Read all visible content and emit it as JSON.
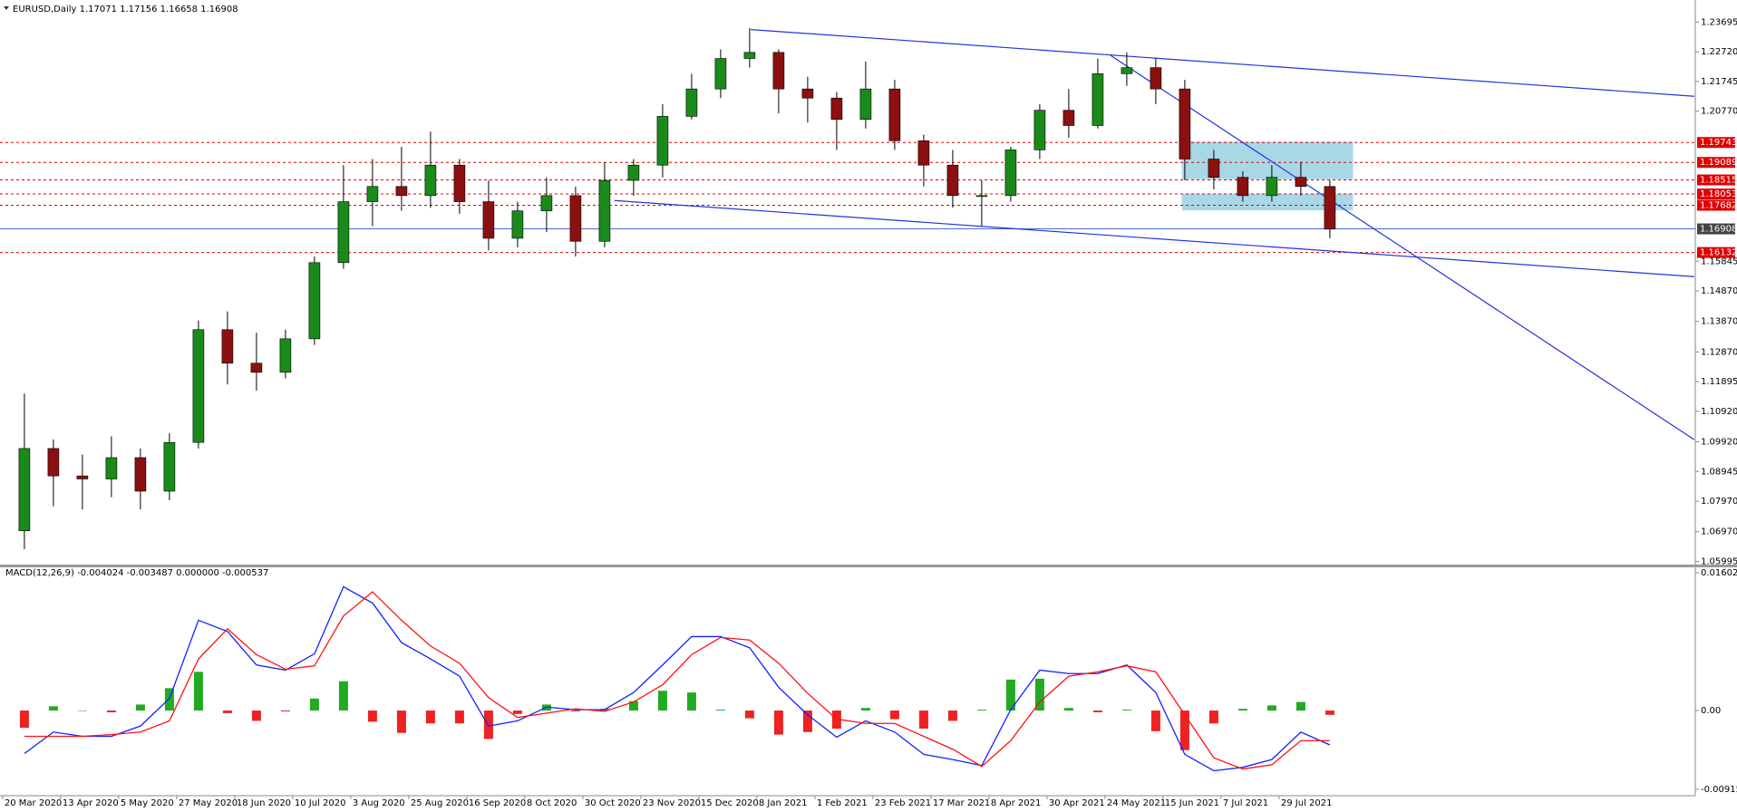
{
  "chart_data": [
    {
      "type": "candlestick",
      "title": "EURUSD,Daily  1.17071 1.17156 1.16658 1.16908",
      "categories": [
        "20 Mar 2020",
        null,
        "13 Apr 2020",
        null,
        "5 May 2020",
        null,
        "27 May 2020",
        null,
        "18 Jun 2020",
        null,
        "10 Jul 2020",
        null,
        "3 Aug 2020",
        null,
        "25 Aug 2020",
        null,
        "16 Sep 2020",
        null,
        "8 Oct 2020",
        null,
        "30 Oct 2020",
        null,
        "23 Nov 2020",
        null,
        "15 Dec 2020",
        null,
        "8 Jan 2021",
        null,
        "1 Feb 2021",
        null,
        "23 Feb 2021",
        null,
        "17 Mar 2021",
        null,
        "8 Apr 2021",
        null,
        "30 Apr 2021",
        null,
        "24 May 2021",
        null,
        "15 Jun 2021",
        null,
        "7 Jul 2021",
        null,
        "29 Jul 2021",
        null
      ],
      "open": [
        1.07,
        1.097,
        1.088,
        1.087,
        1.094,
        1.083,
        1.099,
        1.136,
        1.125,
        1.122,
        1.133,
        1.158,
        1.178,
        1.183,
        1.18,
        1.19,
        1.178,
        1.166,
        1.175,
        1.18,
        1.165,
        1.185,
        1.19,
        1.206,
        1.215,
        1.225,
        1.227,
        1.215,
        1.212,
        1.205,
        1.215,
        1.198,
        1.19,
        1.18,
        1.18,
        1.195,
        1.208,
        1.203,
        1.22,
        1.222,
        1.215,
        1.192,
        1.186,
        1.18,
        1.186,
        1.183
      ],
      "high": [
        1.115,
        1.1,
        1.095,
        1.101,
        1.097,
        1.102,
        1.139,
        1.142,
        1.135,
        1.136,
        1.16,
        1.19,
        1.192,
        1.196,
        1.201,
        1.192,
        1.185,
        1.178,
        1.186,
        1.183,
        1.191,
        1.192,
        1.21,
        1.22,
        1.228,
        1.235,
        1.228,
        1.219,
        1.214,
        1.224,
        1.218,
        1.2,
        1.195,
        1.185,
        1.196,
        1.21,
        1.215,
        1.225,
        1.227,
        1.225,
        1.218,
        1.195,
        1.188,
        1.19,
        1.191,
        1.185
      ],
      "low": [
        1.064,
        1.078,
        1.077,
        1.081,
        1.077,
        1.08,
        1.097,
        1.118,
        1.116,
        1.12,
        1.131,
        1.156,
        1.17,
        1.175,
        1.176,
        1.174,
        1.162,
        1.163,
        1.168,
        1.16,
        1.163,
        1.18,
        1.186,
        1.205,
        1.212,
        1.222,
        1.207,
        1.204,
        1.195,
        1.202,
        1.195,
        1.183,
        1.176,
        1.17,
        1.178,
        1.192,
        1.199,
        1.202,
        1.216,
        1.21,
        1.185,
        1.182,
        1.178,
        1.178,
        1.18,
        1.166
      ],
      "close": [
        1.097,
        1.088,
        1.087,
        1.094,
        1.083,
        1.099,
        1.136,
        1.125,
        1.122,
        1.133,
        1.158,
        1.178,
        1.183,
        1.18,
        1.19,
        1.178,
        1.166,
        1.175,
        1.18,
        1.165,
        1.185,
        1.19,
        1.206,
        1.215,
        1.225,
        1.227,
        1.215,
        1.212,
        1.205,
        1.215,
        1.198,
        1.19,
        1.18,
        1.18,
        1.195,
        1.208,
        1.203,
        1.22,
        1.222,
        1.215,
        1.192,
        1.186,
        1.18,
        1.186,
        1.183,
        1.169
      ],
      "up_color": "#1a8a1a",
      "down_color": "#8b1010",
      "ylim": [
        1.0589,
        1.2436
      ],
      "yticks": [
        1.23695,
        {
          "value": 1.2272,
          "label": "1.22720"
        },
        1.21745,
        {
          "value": 1.2077,
          "label": "1.20770"
        },
        1.15845,
        {
          "value": 1.1487,
          "label": "1.14870"
        },
        {
          "value": 1.1387,
          "label": "1.13870"
        },
        {
          "value": 1.1287,
          "label": "1.12870"
        },
        1.11895,
        {
          "value": 1.1092,
          "label": "1.10920"
        },
        {
          "value": 1.0992,
          "label": "1.09920"
        },
        1.08945,
        {
          "value": 1.0797,
          "label": "1.07970"
        },
        {
          "value": 1.0697,
          "label": "1.06970"
        },
        1.05995
      ],
      "levels": [
        1.19743,
        1.19089,
        1.18515,
        1.18053,
        1.17682,
        1.16132
      ],
      "level_color": "#e00000",
      "current_price": 1.16908,
      "current_color": "#3355cc",
      "trendlines": [
        {
          "x": [
            25.04,
            57.56
          ],
          "y": [
            1.2345,
            1.2126
          ]
        },
        {
          "x": [
            37.44,
            57.56
          ],
          "y": [
            1.226,
            1.0999
          ]
        },
        {
          "x": [
            20.34,
            57.56
          ],
          "y": [
            1.1784,
            1.1534
          ]
        }
      ],
      "trend_color": "#2233dd",
      "zones": [
        {
          "x": [
            39.9,
            45.8
          ],
          "y": [
            1.19768,
            1.18535
          ]
        },
        {
          "x": [
            39.9,
            45.8
          ],
          "y": [
            1.18062,
            1.17517
          ]
        }
      ],
      "zone_color": "#a8d8e6"
    },
    {
      "type": "macd",
      "title": "MACD(12,26,9) -0.004024 -0.003487 0.000000 -0.000537",
      "series": [
        {
          "color": "#1122ff",
          "values": [
            -0.005,
            -0.0025,
            -0.003,
            -0.003,
            -0.0018,
            0.0014,
            0.0105,
            0.0092,
            0.0053,
            0.0047,
            0.0066,
            0.0144,
            0.0125,
            0.0079,
            0.006,
            0.004,
            -0.0018,
            -0.0012,
            0.0004,
            0.0001,
            0.0001,
            0.0021,
            0.0053,
            0.0086,
            0.0086,
            0.0073,
            0.0027,
            -0.0005,
            -0.0031,
            -0.0012,
            -0.0025,
            -0.0051,
            -0.0057,
            -0.0064,
            0.0001,
            0.0047,
            0.0043,
            0.0043,
            0.0053,
            0.0021,
            -0.0051,
            -0.007,
            -0.0066,
            -0.0057,
            -0.0025,
            -0.004
          ]
        },
        {
          "color": "#ff1111",
          "values": [
            -0.003,
            -0.003,
            -0.003,
            -0.0028,
            -0.0025,
            -0.0012,
            0.006,
            0.0095,
            0.0065,
            0.0048,
            0.0052,
            0.011,
            0.0138,
            0.0105,
            0.0075,
            0.0055,
            0.0015,
            -0.0008,
            -0.0003,
            0.0002,
            -0.0001,
            0.001,
            0.003,
            0.0065,
            0.0085,
            0.0082,
            0.0055,
            0.002,
            -0.001,
            -0.0015,
            -0.0015,
            -0.003,
            -0.0045,
            -0.0065,
            -0.0035,
            0.001,
            0.004,
            0.0045,
            0.0052,
            0.0045,
            -0.0005,
            -0.0055,
            -0.0068,
            -0.0063,
            -0.0035,
            -0.0035
          ]
        }
      ],
      "histogram": [
        -0.002,
        0.0005,
        0,
        -0.0002,
        0.0007,
        0.0026,
        0.0045,
        -0.0003,
        -0.0012,
        -0.0001,
        0.0014,
        0.0034,
        -0.0013,
        -0.0026,
        -0.0015,
        -0.0015,
        -0.0033,
        -0.0004,
        0.0007,
        -0.0001,
        0.0002,
        0.0011,
        0.0023,
        0.0021,
        0.0001,
        -0.0009,
        -0.0028,
        -0.0025,
        -0.0021,
        0.0003,
        -0.001,
        -0.0021,
        -0.0012,
        0.0001,
        0.0036,
        0.0037,
        0.0003,
        -0.0002,
        0.0001,
        -0.0024,
        -0.0046,
        -0.0015,
        0.0002,
        0.0006,
        0.001,
        -0.0005
      ],
      "hist_up_color": "#22aa22",
      "hist_down_color": "#ee2222",
      "ylim": [
        -0.00969,
        0.01655
      ],
      "yticks": [
        0.016024,
        {
          "value": 0,
          "label": "0.00"
        },
        -0.009154
      ]
    }
  ]
}
